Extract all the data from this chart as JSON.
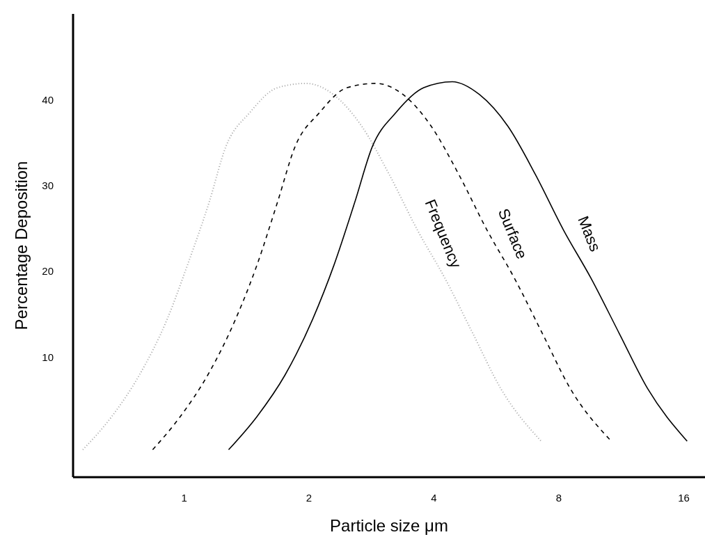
{
  "chart_data": {
    "type": "line",
    "xlabel": "Particle size μm",
    "ylabel": "Percentage Deposition",
    "log": "x",
    "xlim": [
      0.54,
      18
    ],
    "xticks": [
      1,
      2,
      4,
      8,
      16
    ],
    "ylim": [
      -4,
      50
    ],
    "yticks": [
      10,
      20,
      30,
      40
    ],
    "grid": false,
    "legend": false,
    "marker": "none",
    "series": [
      {
        "name": "Frequency",
        "color": "#a0a0a0",
        "line_style": "dotted",
        "x": [
          0.57,
          0.67,
          0.78,
          0.91,
          1.02,
          1.15,
          1.26,
          1.44,
          1.68,
          1.97,
          2.29,
          2.68,
          3.12,
          3.65,
          4.25,
          4.97,
          5.8,
          7.25
        ],
        "values": [
          -0.8,
          3.1,
          7.9,
          14.4,
          20.8,
          28.1,
          34.5,
          38.5,
          41.4,
          41.9,
          40.6,
          36.9,
          31.3,
          24.8,
          19.2,
          12.7,
          6.3,
          0.2
        ]
      },
      {
        "name": "Surface",
        "color": "#000000",
        "line_style": "dashed",
        "x": [
          0.84,
          0.98,
          1.14,
          1.33,
          1.5,
          1.68,
          1.85,
          2.12,
          2.47,
          2.9,
          3.37,
          3.94,
          4.59,
          5.37,
          6.25,
          7.31,
          8.53,
          10.7
        ],
        "values": [
          -0.8,
          3.1,
          7.9,
          14.4,
          20.8,
          28.1,
          34.5,
          38.5,
          41.4,
          41.9,
          40.6,
          36.9,
          31.3,
          24.8,
          19.2,
          12.7,
          6.3,
          0.2
        ]
      },
      {
        "name": "Mass",
        "color": "#000000",
        "line_style": "solid",
        "x": [
          1.28,
          1.5,
          1.75,
          2.04,
          2.3,
          2.58,
          2.84,
          3.24,
          3.78,
          4.43,
          5.15,
          6.03,
          7.02,
          8.21,
          9.56,
          11.2,
          13.1,
          16.3
        ],
        "values": [
          -0.8,
          3.1,
          7.9,
          14.4,
          20.8,
          28.1,
          34.5,
          38.5,
          41.4,
          42.1,
          40.6,
          36.9,
          31.3,
          24.8,
          19.2,
          12.7,
          6.3,
          0.2
        ]
      }
    ]
  }
}
